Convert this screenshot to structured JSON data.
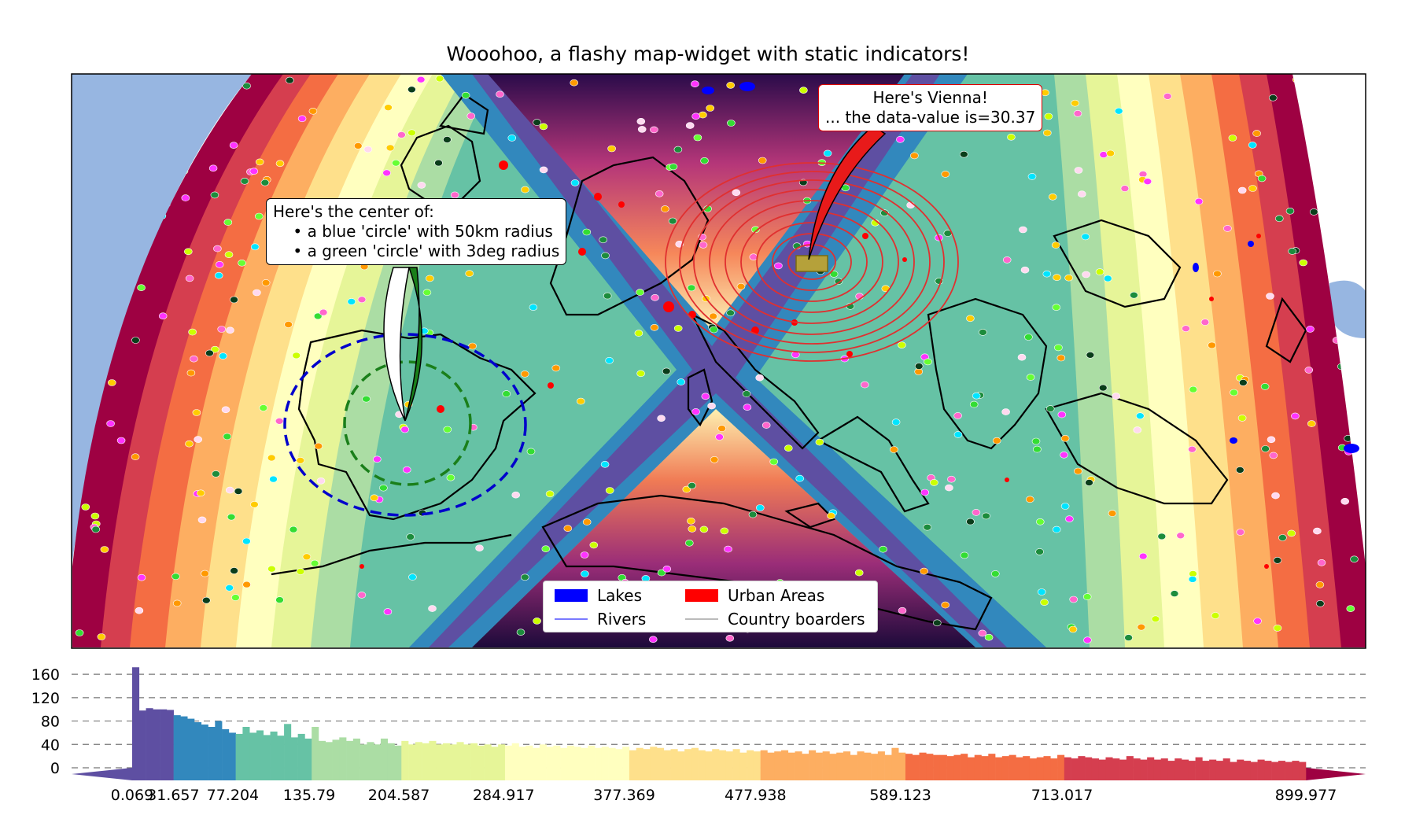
{
  "title": "Wooohoo, a flashy map-widget with static indicators!",
  "annotations": {
    "center_line1": "Here's the center of:",
    "center_line2": "    • a blue 'circle' with 50km radius",
    "center_line3": "    • a green 'circle' with 3deg radius",
    "vienna_line1": "Here's Vienna!",
    "vienna_line2": "... the data-value is=30.37"
  },
  "legend": {
    "lakes": "Lakes",
    "urban": "Urban Areas",
    "rivers": "Rivers",
    "borders": "Country boarders"
  },
  "colors": {
    "lakes": "#0000ff",
    "urban": "#ff0000",
    "rivers": "#7a7aff",
    "borders": "#bbbbbb",
    "ocean": "#97b6e1",
    "blue_circle": "#0000cc",
    "green_circle": "#1a7f1a",
    "vienna_rings": "#e03030"
  },
  "chart_data": {
    "type": "bar",
    "title": "",
    "xlabel": "",
    "ylabel": "",
    "yticks": [
      0,
      40,
      80,
      120,
      160
    ],
    "ylim": [
      -8,
      175
    ],
    "grid": "horizontal dashed",
    "bin_edges": [
      0.069,
      31.657,
      77.204,
      135.79,
      204.587,
      284.917,
      377.369,
      477.938,
      589.123,
      713.017,
      899.977
    ],
    "tick_labels": [
      "0.069",
      "31.657",
      "77.204",
      "135.79",
      "204.587",
      "284.917",
      "377.369",
      "477.938",
      "589.123",
      "713.017",
      "899.977"
    ],
    "class_colors": [
      "#5e4fa2",
      "#3288bd",
      "#66c2a5",
      "#abdda4",
      "#e6f598",
      "#ffffbf",
      "#fee08b",
      "#fdae61",
      "#f46d43",
      "#d53e4f",
      "#9e0142"
    ],
    "histogram_values": [
      172,
      98,
      102,
      100,
      100,
      99,
      90,
      88,
      84,
      78,
      74,
      70,
      80,
      66,
      60,
      58,
      70,
      60,
      64,
      56,
      62,
      55,
      75,
      52,
      58,
      50,
      70,
      46,
      44,
      48,
      52,
      46,
      50,
      40,
      44,
      40,
      50,
      42,
      38,
      46,
      40,
      44,
      42,
      46,
      40,
      42,
      40,
      44,
      40,
      42,
      38,
      40,
      36,
      40,
      38,
      42,
      36,
      38,
      34,
      40,
      36,
      38,
      34,
      38,
      36,
      34,
      38,
      34,
      36,
      34,
      32,
      36,
      30,
      34,
      32,
      36,
      34,
      30,
      32,
      28,
      32,
      34,
      30,
      28,
      32,
      30,
      28,
      32,
      26,
      30,
      28,
      30,
      26,
      28,
      30,
      26,
      28,
      24,
      30,
      26,
      28,
      24,
      26,
      28,
      22,
      28,
      26,
      24,
      28,
      22,
      34,
      26,
      24,
      22,
      26,
      24,
      22,
      22,
      20,
      22,
      24,
      18,
      22,
      20,
      24,
      18,
      20,
      22,
      18,
      20,
      16,
      18,
      20,
      16,
      22,
      18,
      16,
      20,
      18,
      16,
      14,
      18,
      16,
      14,
      20,
      16,
      14,
      18,
      14,
      16,
      12,
      16,
      14,
      12,
      18,
      12,
      14,
      12,
      16,
      10,
      14,
      12,
      10,
      14,
      12,
      10,
      12,
      10,
      12,
      10
    ]
  },
  "map_indicators": {
    "vienna_value": 30.37,
    "blue_circle_radius": "50km",
    "green_circle_radius": "3deg"
  }
}
